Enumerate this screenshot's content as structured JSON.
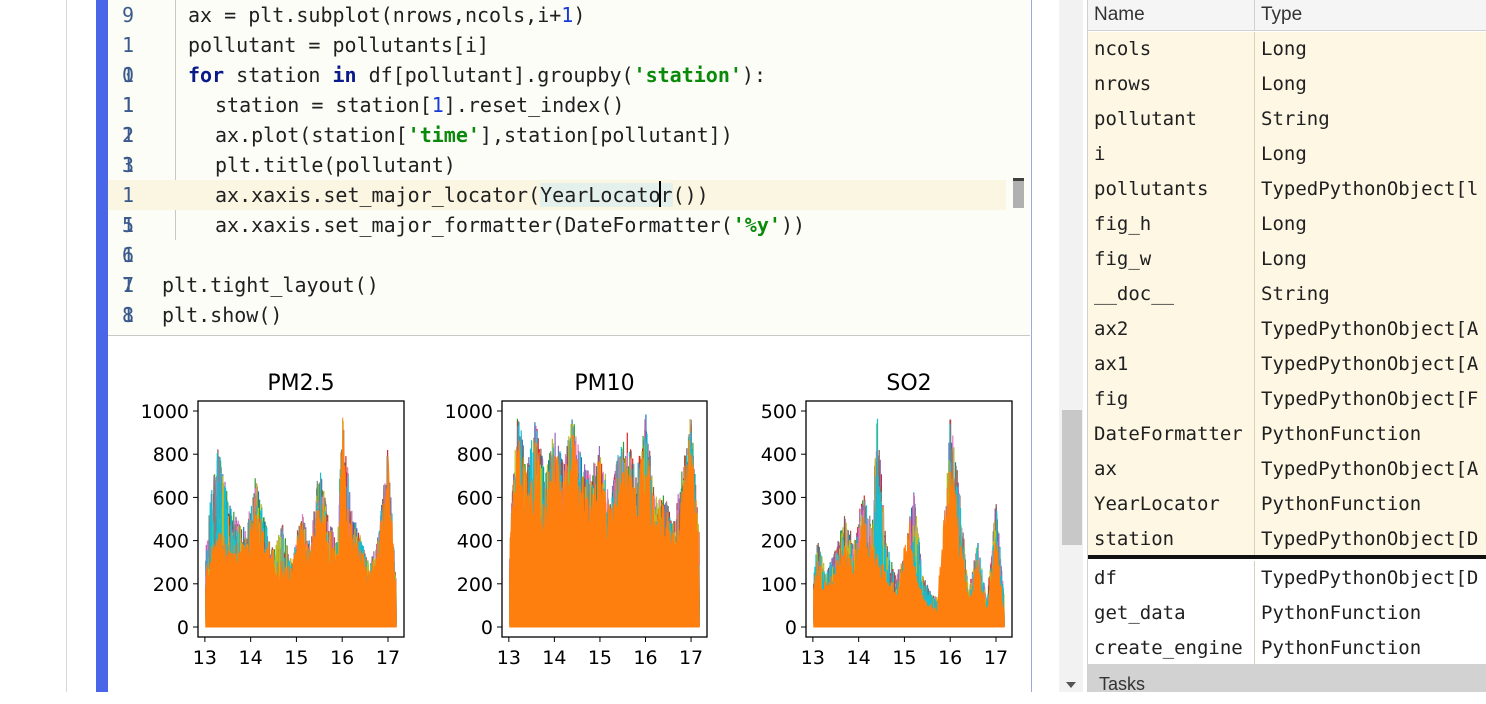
{
  "editor": {
    "lines": [
      {
        "ln": [
          "9"
        ],
        "html": "ax = plt.subplot(nrows,ncols,i+<span class='num'>1</span>)",
        "indent": 1
      },
      {
        "ln": [
          "1"
        ],
        "html": "pollutant = pollutants[i]",
        "indent": 1
      },
      {
        "ln": [
          "1",
          "0"
        ],
        "html": "<span class='kw'>for</span> station <span class='kw'>in</span> df[pollutant].groupby(<span class='str'>'station'</span>):",
        "indent": 1
      },
      {
        "ln": [
          "1",
          "1"
        ],
        "html": "station = station[<span class='num'>1</span>].reset_index()",
        "indent": 2
      },
      {
        "ln": [
          "1",
          "2"
        ],
        "html": "ax.plot(station[<span class='str'>'time'</span>],station[pollutant])",
        "indent": 2
      },
      {
        "ln": [
          "1",
          "3"
        ],
        "html": "plt.title(pollutant)",
        "indent": 2
      },
      {
        "ln": [
          "1"
        ],
        "html": "ax.xaxis.set_major_locator(<span class='hl'>YearLocator</span>())",
        "indent": 2,
        "current": true
      },
      {
        "ln": [
          "1",
          "5"
        ],
        "html": "ax.xaxis.set_major_formatter(DateFormatter(<span class='str'>'%y'</span>))",
        "indent": 2
      },
      {
        "ln": [
          "1",
          "6"
        ],
        "html": "",
        "indent": 0
      },
      {
        "ln": [
          "1",
          "7"
        ],
        "html": "plt.tight_layout()",
        "indent": 0
      },
      {
        "ln": [
          "1",
          "8"
        ],
        "html": "plt.show()",
        "indent": 0
      }
    ]
  },
  "chart_data": [
    {
      "type": "line",
      "title": "PM2.5",
      "ylim": [
        0,
        1000
      ],
      "yticks": [
        "0",
        "200",
        "400",
        "600",
        "800",
        "1000"
      ],
      "xticks": [
        "13",
        "14",
        "15",
        "16",
        "17"
      ],
      "series_colors": [
        "#1f77b4",
        "#2ca02c",
        "#d62728",
        "#9467bd",
        "#8c564b",
        "#e377c2",
        "#7f7f7f",
        "#bcbd22",
        "#17becf",
        "#ff7f0e"
      ],
      "envelope": [
        [
          13.0,
          300
        ],
        [
          13.1,
          560
        ],
        [
          13.3,
          845
        ],
        [
          13.5,
          600
        ],
        [
          13.7,
          500
        ],
        [
          13.9,
          450
        ],
        [
          14.1,
          700
        ],
        [
          14.3,
          500
        ],
        [
          14.5,
          350
        ],
        [
          14.7,
          480
        ],
        [
          14.9,
          300
        ],
        [
          15.1,
          550
        ],
        [
          15.3,
          380
        ],
        [
          15.5,
          760
        ],
        [
          15.7,
          500
        ],
        [
          15.9,
          400
        ],
        [
          16.0,
          1000
        ],
        [
          16.2,
          550
        ],
        [
          16.4,
          420
        ],
        [
          16.6,
          280
        ],
        [
          16.8,
          450
        ],
        [
          17.0,
          835
        ],
        [
          17.2,
          130
        ]
      ],
      "orange_peak": [
        [
          13.0,
          280
        ],
        [
          13.3,
          470
        ],
        [
          13.6,
          400
        ],
        [
          13.9,
          380
        ],
        [
          14.1,
          640
        ],
        [
          14.3,
          450
        ],
        [
          14.6,
          330
        ],
        [
          14.9,
          280
        ],
        [
          15.1,
          520
        ],
        [
          15.3,
          350
        ],
        [
          15.5,
          620
        ],
        [
          15.7,
          470
        ],
        [
          15.9,
          380
        ],
        [
          16.0,
          1000
        ],
        [
          16.2,
          500
        ],
        [
          16.4,
          380
        ],
        [
          16.6,
          260
        ],
        [
          16.8,
          420
        ],
        [
          17.0,
          800
        ],
        [
          17.2,
          120
        ]
      ]
    },
    {
      "type": "line",
      "title": "PM10",
      "ylim": [
        0,
        1000
      ],
      "yticks": [
        "0",
        "200",
        "400",
        "600",
        "800",
        "1000"
      ],
      "xticks": [
        "13",
        "14",
        "15",
        "16",
        "17"
      ],
      "series_colors": [
        "#1f77b4",
        "#2ca02c",
        "#d62728",
        "#9467bd",
        "#8c564b",
        "#e377c2",
        "#7f7f7f",
        "#bcbd22",
        "#17becf",
        "#ff7f0e"
      ],
      "envelope": [
        [
          13.0,
          400
        ],
        [
          13.2,
          1000
        ],
        [
          13.4,
          750
        ],
        [
          13.6,
          980
        ],
        [
          13.8,
          700
        ],
        [
          14.0,
          920
        ],
        [
          14.2,
          750
        ],
        [
          14.4,
          980
        ],
        [
          14.6,
          780
        ],
        [
          14.8,
          700
        ],
        [
          15.0,
          880
        ],
        [
          15.2,
          600
        ],
        [
          15.4,
          800
        ],
        [
          15.6,
          900
        ],
        [
          15.8,
          700
        ],
        [
          16.0,
          1000
        ],
        [
          16.2,
          600
        ],
        [
          16.4,
          620
        ],
        [
          16.6,
          500
        ],
        [
          16.8,
          720
        ],
        [
          17.0,
          990
        ],
        [
          17.2,
          350
        ]
      ],
      "orange_peak": [
        [
          13.0,
          380
        ],
        [
          13.2,
          950
        ],
        [
          13.4,
          700
        ],
        [
          13.6,
          900
        ],
        [
          13.8,
          650
        ],
        [
          14.0,
          880
        ],
        [
          14.2,
          700
        ],
        [
          14.4,
          930
        ],
        [
          14.6,
          720
        ],
        [
          14.8,
          650
        ],
        [
          15.0,
          820
        ],
        [
          15.2,
          560
        ],
        [
          15.4,
          760
        ],
        [
          15.6,
          860
        ],
        [
          15.8,
          650
        ],
        [
          16.0,
          980
        ],
        [
          16.2,
          560
        ],
        [
          16.4,
          580
        ],
        [
          16.6,
          460
        ],
        [
          16.8,
          680
        ],
        [
          17.0,
          960
        ],
        [
          17.2,
          330
        ]
      ]
    },
    {
      "type": "line",
      "title": "SO2",
      "ylim": [
        0,
        500
      ],
      "yticks": [
        "0",
        "100",
        "200",
        "300",
        "400",
        "500"
      ],
      "xticks": [
        "13",
        "14",
        "15",
        "16",
        "17"
      ],
      "series_colors": [
        "#1f77b4",
        "#2ca02c",
        "#d62728",
        "#9467bd",
        "#8c564b",
        "#e377c2",
        "#7f7f7f",
        "#bcbd22",
        "#17becf",
        "#ff7f0e"
      ],
      "envelope": [
        [
          13.0,
          100
        ],
        [
          13.1,
          200
        ],
        [
          13.3,
          130
        ],
        [
          13.5,
          180
        ],
        [
          13.7,
          260
        ],
        [
          13.9,
          200
        ],
        [
          14.1,
          320
        ],
        [
          14.3,
          250
        ],
        [
          14.4,
          500
        ],
        [
          14.6,
          200
        ],
        [
          14.8,
          120
        ],
        [
          15.0,
          160
        ],
        [
          15.2,
          320
        ],
        [
          15.4,
          120
        ],
        [
          15.6,
          80
        ],
        [
          15.8,
          60
        ],
        [
          16.0,
          500
        ],
        [
          16.2,
          320
        ],
        [
          16.4,
          80
        ],
        [
          16.6,
          200
        ],
        [
          16.8,
          60
        ],
        [
          17.0,
          300
        ],
        [
          17.2,
          40
        ]
      ],
      "orange_peak": [
        [
          13.0,
          90
        ],
        [
          13.1,
          160
        ],
        [
          13.3,
          110
        ],
        [
          13.5,
          150
        ],
        [
          13.7,
          200
        ],
        [
          13.9,
          170
        ],
        [
          14.1,
          260
        ],
        [
          14.3,
          200
        ],
        [
          14.5,
          160
        ],
        [
          14.7,
          100
        ],
        [
          14.9,
          130
        ],
        [
          15.1,
          250
        ],
        [
          15.3,
          100
        ],
        [
          15.5,
          60
        ],
        [
          15.7,
          50
        ],
        [
          16.0,
          420
        ],
        [
          16.2,
          260
        ],
        [
          16.4,
          70
        ],
        [
          16.6,
          160
        ],
        [
          16.8,
          50
        ],
        [
          17.0,
          220
        ],
        [
          17.2,
          30
        ]
      ]
    }
  ],
  "variables": {
    "headers": {
      "name": "Name",
      "type": "Type"
    },
    "rows": [
      {
        "name": "ncols",
        "type": "Long",
        "user": true
      },
      {
        "name": "nrows",
        "type": "Long",
        "user": true
      },
      {
        "name": "pollutant",
        "type": "String",
        "user": true
      },
      {
        "name": "i",
        "type": "Long",
        "user": true
      },
      {
        "name": "pollutants",
        "type": "TypedPythonObject[l",
        "user": true
      },
      {
        "name": "fig_h",
        "type": "Long",
        "user": true
      },
      {
        "name": "fig_w",
        "type": "Long",
        "user": true
      },
      {
        "name": "__doc__",
        "type": "String",
        "user": true
      },
      {
        "name": "ax2",
        "type": "TypedPythonObject[A",
        "user": true
      },
      {
        "name": "ax1",
        "type": "TypedPythonObject[A",
        "user": true
      },
      {
        "name": "fig",
        "type": "TypedPythonObject[F",
        "user": true
      },
      {
        "name": "DateFormatter",
        "type": "PythonFunction",
        "user": true
      },
      {
        "name": "ax",
        "type": "TypedPythonObject[A",
        "user": true
      },
      {
        "name": "YearLocator",
        "type": "PythonFunction",
        "user": true
      },
      {
        "name": "station",
        "type": "TypedPythonObject[D",
        "user": true
      },
      {
        "name": "df",
        "type": "TypedPythonObject[D",
        "user": false
      },
      {
        "name": "get_data",
        "type": "PythonFunction",
        "user": false
      },
      {
        "name": "create_engine",
        "type": "PythonFunction",
        "user": false
      }
    ],
    "tasks_label": "Tasks"
  }
}
